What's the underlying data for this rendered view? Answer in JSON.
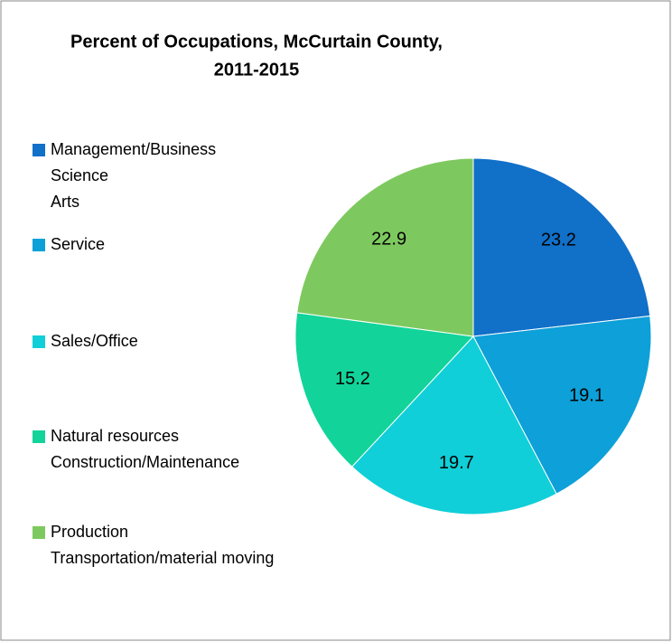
{
  "chart_data": {
    "type": "pie",
    "title": [
      "Percent of Occupations, McCurtain County,",
      "2011-2015"
    ],
    "categories": [
      [
        "Management/Business",
        "Science",
        "Arts"
      ],
      [
        "Service"
      ],
      [
        "Sales/Office"
      ],
      [
        "Natural resources",
        "Construction/Maintenance"
      ],
      [
        "Production",
        "Transportation/material moving"
      ]
    ],
    "values": [
      23.2,
      19.1,
      19.7,
      15.2,
      22.9
    ],
    "colors": [
      "#1170c8",
      "#0ea0d8",
      "#10cfd8",
      "#12d49a",
      "#7ec95f"
    ],
    "legend": "left"
  }
}
